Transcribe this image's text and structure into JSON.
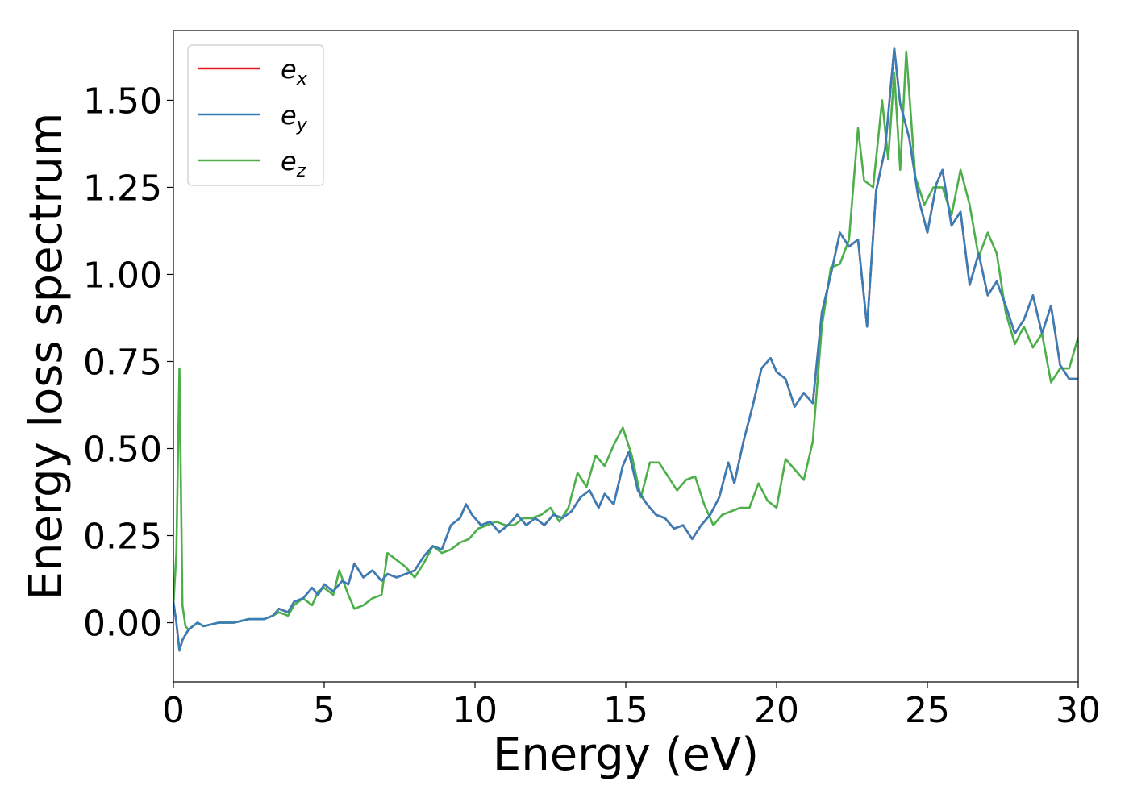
{
  "chart_data": {
    "type": "line",
    "title": "",
    "xlabel": "Energy (eV)",
    "ylabel": "Energy loss spectrum",
    "xlim": [
      0,
      30
    ],
    "ylim": [
      -0.17,
      1.7
    ],
    "x_ticks": [
      0,
      5,
      10,
      15,
      20,
      25,
      30
    ],
    "x_tick_labels": [
      "0",
      "5",
      "10",
      "15",
      "20",
      "25",
      "30"
    ],
    "y_ticks": [
      0,
      0.25,
      0.5,
      0.75,
      1.0,
      1.25,
      1.5
    ],
    "y_tick_labels": [
      "0.00",
      "0.25",
      "0.50",
      "0.75",
      "1.00",
      "1.25",
      "1.50"
    ],
    "grid": false,
    "legend_position": "top-left",
    "series": [
      {
        "name": "e",
        "subscript": "x",
        "color": "#e41a1c",
        "x": [
          0,
          0.1,
          0.2,
          0.3,
          0.5,
          0.8,
          1.0,
          1.5,
          2.0,
          2.5,
          3.0,
          3.3,
          3.5,
          3.8,
          4.0,
          4.3,
          4.6,
          4.8,
          5.0,
          5.3,
          5.6,
          5.8,
          6.0,
          6.3,
          6.6,
          6.9,
          7.1,
          7.4,
          7.7,
          8.0,
          8.3,
          8.6,
          8.9,
          9.2,
          9.5,
          9.7,
          9.9,
          10.2,
          10.5,
          10.8,
          11.1,
          11.4,
          11.7,
          12.0,
          12.3,
          12.6,
          12.9,
          13.2,
          13.5,
          13.8,
          14.1,
          14.3,
          14.6,
          14.9,
          15.1,
          15.4,
          15.7,
          16.0,
          16.3,
          16.6,
          16.9,
          17.2,
          17.5,
          17.8,
          18.1,
          18.4,
          18.6,
          18.9,
          19.2,
          19.5,
          19.8,
          20.0,
          20.3,
          20.6,
          20.9,
          21.2,
          21.5,
          21.8,
          22.1,
          22.4,
          22.7,
          23.0,
          23.3,
          23.6,
          23.9,
          24.1,
          24.4,
          24.7,
          25.0,
          25.3,
          25.5,
          25.8,
          26.1,
          26.4,
          26.7,
          27.0,
          27.3,
          27.6,
          27.9,
          28.2,
          28.5,
          28.8,
          29.1,
          29.4,
          29.7,
          30.0
        ],
        "values": [
          0.06,
          0.0,
          -0.08,
          -0.05,
          -0.02,
          0.0,
          -0.01,
          0.0,
          0.0,
          0.01,
          0.01,
          0.02,
          0.04,
          0.03,
          0.06,
          0.07,
          0.1,
          0.08,
          0.11,
          0.09,
          0.12,
          0.11,
          0.17,
          0.13,
          0.15,
          0.12,
          0.14,
          0.13,
          0.14,
          0.15,
          0.19,
          0.22,
          0.21,
          0.28,
          0.3,
          0.34,
          0.31,
          0.28,
          0.29,
          0.26,
          0.28,
          0.31,
          0.28,
          0.3,
          0.28,
          0.31,
          0.3,
          0.32,
          0.36,
          0.38,
          0.33,
          0.37,
          0.34,
          0.45,
          0.49,
          0.38,
          0.34,
          0.31,
          0.3,
          0.27,
          0.28,
          0.24,
          0.28,
          0.31,
          0.36,
          0.46,
          0.4,
          0.52,
          0.62,
          0.73,
          0.76,
          0.72,
          0.7,
          0.62,
          0.66,
          0.63,
          0.89,
          1.0,
          1.12,
          1.08,
          1.1,
          0.85,
          1.24,
          1.36,
          1.65,
          1.49,
          1.39,
          1.22,
          1.12,
          1.26,
          1.3,
          1.14,
          1.18,
          0.97,
          1.06,
          0.94,
          0.98,
          0.91,
          0.83,
          0.87,
          0.94,
          0.83,
          0.91,
          0.74,
          0.7,
          0.7
        ]
      },
      {
        "name": "e",
        "subscript": "y",
        "color": "#377eb8",
        "x": [
          0,
          0.1,
          0.2,
          0.3,
          0.5,
          0.8,
          1.0,
          1.5,
          2.0,
          2.5,
          3.0,
          3.3,
          3.5,
          3.8,
          4.0,
          4.3,
          4.6,
          4.8,
          5.0,
          5.3,
          5.6,
          5.8,
          6.0,
          6.3,
          6.6,
          6.9,
          7.1,
          7.4,
          7.7,
          8.0,
          8.3,
          8.6,
          8.9,
          9.2,
          9.5,
          9.7,
          9.9,
          10.2,
          10.5,
          10.8,
          11.1,
          11.4,
          11.7,
          12.0,
          12.3,
          12.6,
          12.9,
          13.2,
          13.5,
          13.8,
          14.1,
          14.3,
          14.6,
          14.9,
          15.1,
          15.4,
          15.7,
          16.0,
          16.3,
          16.6,
          16.9,
          17.2,
          17.5,
          17.8,
          18.1,
          18.4,
          18.6,
          18.9,
          19.2,
          19.5,
          19.8,
          20.0,
          20.3,
          20.6,
          20.9,
          21.2,
          21.5,
          21.8,
          22.1,
          22.4,
          22.7,
          23.0,
          23.3,
          23.6,
          23.9,
          24.1,
          24.4,
          24.7,
          25.0,
          25.3,
          25.5,
          25.8,
          26.1,
          26.4,
          26.7,
          27.0,
          27.3,
          27.6,
          27.9,
          28.2,
          28.5,
          28.8,
          29.1,
          29.4,
          29.7,
          30.0
        ],
        "values": [
          0.06,
          0.0,
          -0.08,
          -0.05,
          -0.02,
          0.0,
          -0.01,
          0.0,
          0.0,
          0.01,
          0.01,
          0.02,
          0.04,
          0.03,
          0.06,
          0.07,
          0.1,
          0.08,
          0.11,
          0.09,
          0.12,
          0.11,
          0.17,
          0.13,
          0.15,
          0.12,
          0.14,
          0.13,
          0.14,
          0.15,
          0.19,
          0.22,
          0.21,
          0.28,
          0.3,
          0.34,
          0.31,
          0.28,
          0.29,
          0.26,
          0.28,
          0.31,
          0.28,
          0.3,
          0.28,
          0.31,
          0.3,
          0.32,
          0.36,
          0.38,
          0.33,
          0.37,
          0.34,
          0.45,
          0.49,
          0.38,
          0.34,
          0.31,
          0.3,
          0.27,
          0.28,
          0.24,
          0.28,
          0.31,
          0.36,
          0.46,
          0.4,
          0.52,
          0.62,
          0.73,
          0.76,
          0.72,
          0.7,
          0.62,
          0.66,
          0.63,
          0.89,
          1.0,
          1.12,
          1.08,
          1.1,
          0.85,
          1.24,
          1.36,
          1.65,
          1.49,
          1.39,
          1.22,
          1.12,
          1.26,
          1.3,
          1.14,
          1.18,
          0.97,
          1.06,
          0.94,
          0.98,
          0.91,
          0.83,
          0.87,
          0.94,
          0.83,
          0.91,
          0.74,
          0.7,
          0.7
        ]
      },
      {
        "name": "e",
        "subscript": "z",
        "color": "#4daf4a",
        "x": [
          0,
          0.1,
          0.2,
          0.25,
          0.3,
          0.4,
          0.5,
          0.8,
          1.0,
          1.5,
          2.0,
          2.5,
          3.0,
          3.3,
          3.5,
          3.8,
          4.0,
          4.3,
          4.6,
          4.8,
          5.0,
          5.3,
          5.5,
          5.8,
          6.0,
          6.3,
          6.6,
          6.9,
          7.1,
          7.4,
          7.7,
          8.0,
          8.3,
          8.6,
          8.9,
          9.2,
          9.5,
          9.8,
          10.1,
          10.4,
          10.7,
          11.0,
          11.3,
          11.6,
          11.9,
          12.2,
          12.5,
          12.8,
          13.1,
          13.4,
          13.7,
          14.0,
          14.3,
          14.6,
          14.9,
          15.2,
          15.5,
          15.8,
          16.1,
          16.4,
          16.7,
          17.0,
          17.3,
          17.6,
          17.9,
          18.2,
          18.5,
          18.8,
          19.1,
          19.4,
          19.7,
          20.0,
          20.3,
          20.6,
          20.9,
          21.2,
          21.5,
          21.8,
          22.1,
          22.4,
          22.7,
          22.9,
          23.2,
          23.5,
          23.7,
          23.9,
          24.1,
          24.3,
          24.6,
          24.9,
          25.2,
          25.5,
          25.8,
          26.1,
          26.4,
          26.7,
          27.0,
          27.3,
          27.6,
          27.9,
          28.2,
          28.5,
          28.8,
          29.1,
          29.4,
          29.7,
          30.0
        ],
        "values": [
          0.05,
          0.2,
          0.73,
          0.4,
          0.05,
          -0.01,
          -0.02,
          0.0,
          -0.01,
          0.0,
          0.0,
          0.01,
          0.01,
          0.02,
          0.03,
          0.02,
          0.05,
          0.07,
          0.05,
          0.09,
          0.1,
          0.08,
          0.15,
          0.08,
          0.04,
          0.05,
          0.07,
          0.08,
          0.2,
          0.18,
          0.16,
          0.13,
          0.17,
          0.22,
          0.2,
          0.21,
          0.23,
          0.24,
          0.27,
          0.28,
          0.29,
          0.28,
          0.28,
          0.3,
          0.3,
          0.31,
          0.33,
          0.29,
          0.33,
          0.43,
          0.39,
          0.48,
          0.45,
          0.51,
          0.56,
          0.48,
          0.36,
          0.46,
          0.46,
          0.42,
          0.38,
          0.41,
          0.42,
          0.34,
          0.28,
          0.31,
          0.32,
          0.33,
          0.33,
          0.4,
          0.35,
          0.33,
          0.47,
          0.44,
          0.41,
          0.52,
          0.85,
          1.02,
          1.03,
          1.1,
          1.42,
          1.27,
          1.25,
          1.5,
          1.33,
          1.58,
          1.3,
          1.64,
          1.28,
          1.2,
          1.25,
          1.25,
          1.17,
          1.3,
          1.2,
          1.05,
          1.12,
          1.06,
          0.89,
          0.8,
          0.85,
          0.79,
          0.83,
          0.69,
          0.73,
          0.73,
          0.82
        ]
      }
    ]
  }
}
